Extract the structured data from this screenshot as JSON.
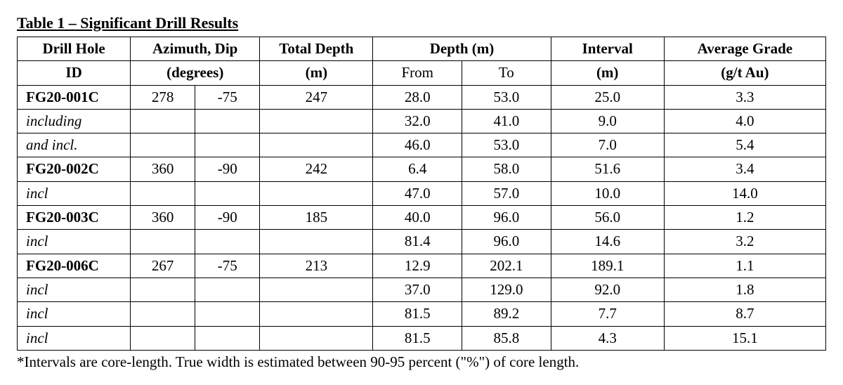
{
  "title": "Table 1 – Significant Drill Results",
  "footnote": "*Intervals are core-length. True width is estimated between 90-95 percent (\"%\") of core length.",
  "table": {
    "type": "table",
    "border_color": "#000000",
    "background_color": "#ffffff",
    "text_color": "#000000",
    "font_family": "Times New Roman",
    "font_size_pt": 16,
    "header": {
      "drill_hole_l1": "Drill Hole",
      "drill_hole_l2": "ID",
      "azimuth_l1": "Azimuth, Dip",
      "azimuth_l2": "(degrees)",
      "total_depth_l1": "Total Depth",
      "total_depth_l2": "(m)",
      "depth_l1": "Depth (m)",
      "depth_from": "From",
      "depth_to": "To",
      "interval_l1": "Interval",
      "interval_l2": "(m)",
      "grade_l1": "Average Grade",
      "grade_l2": "(g/t Au)"
    },
    "rows": [
      {
        "id": "FG20-001C",
        "id_style": "bold",
        "az": "278",
        "dip": "-75",
        "total": "247",
        "from": "28.0",
        "to": "53.0",
        "interval": "25.0",
        "grade": "3.3"
      },
      {
        "id": "including",
        "id_style": "italic",
        "az": "",
        "dip": "",
        "total": "",
        "from": "32.0",
        "to": "41.0",
        "interval": "9.0",
        "grade": "4.0"
      },
      {
        "id": "and incl.",
        "id_style": "italic",
        "az": "",
        "dip": "",
        "total": "",
        "from": "46.0",
        "to": "53.0",
        "interval": "7.0",
        "grade": "5.4"
      },
      {
        "id": "FG20-002C",
        "id_style": "bold",
        "az": "360",
        "dip": "-90",
        "total": "242",
        "from": "6.4",
        "to": "58.0",
        "interval": "51.6",
        "grade": "3.4"
      },
      {
        "id": "incl",
        "id_style": "italic",
        "az": "",
        "dip": "",
        "total": "",
        "from": "47.0",
        "to": "57.0",
        "interval": "10.0",
        "grade": "14.0"
      },
      {
        "id": "FG20-003C",
        "id_style": "bold",
        "az": "360",
        "dip": "-90",
        "total": "185",
        "from": "40.0",
        "to": "96.0",
        "interval": "56.0",
        "grade": "1.2"
      },
      {
        "id": "incl",
        "id_style": "italic",
        "az": "",
        "dip": "",
        "total": "",
        "from": "81.4",
        "to": "96.0",
        "interval": "14.6",
        "grade": "3.2"
      },
      {
        "id": "FG20-006C",
        "id_style": "bold",
        "az": "267",
        "dip": "-75",
        "total": "213",
        "from": "12.9",
        "to": "202.1",
        "interval": "189.1",
        "grade": "1.1"
      },
      {
        "id": "incl",
        "id_style": "italic",
        "az": "",
        "dip": "",
        "total": "",
        "from": "37.0",
        "to": "129.0",
        "interval": "92.0",
        "grade": "1.8"
      },
      {
        "id": "incl",
        "id_style": "italic",
        "az": "",
        "dip": "",
        "total": "",
        "from": "81.5",
        "to": "89.2",
        "interval": "7.7",
        "grade": "8.7"
      },
      {
        "id": "incl",
        "id_style": "italic",
        "az": "",
        "dip": "",
        "total": "",
        "from": "81.5",
        "to": "85.8",
        "interval": "4.3",
        "grade": "15.1"
      }
    ]
  }
}
